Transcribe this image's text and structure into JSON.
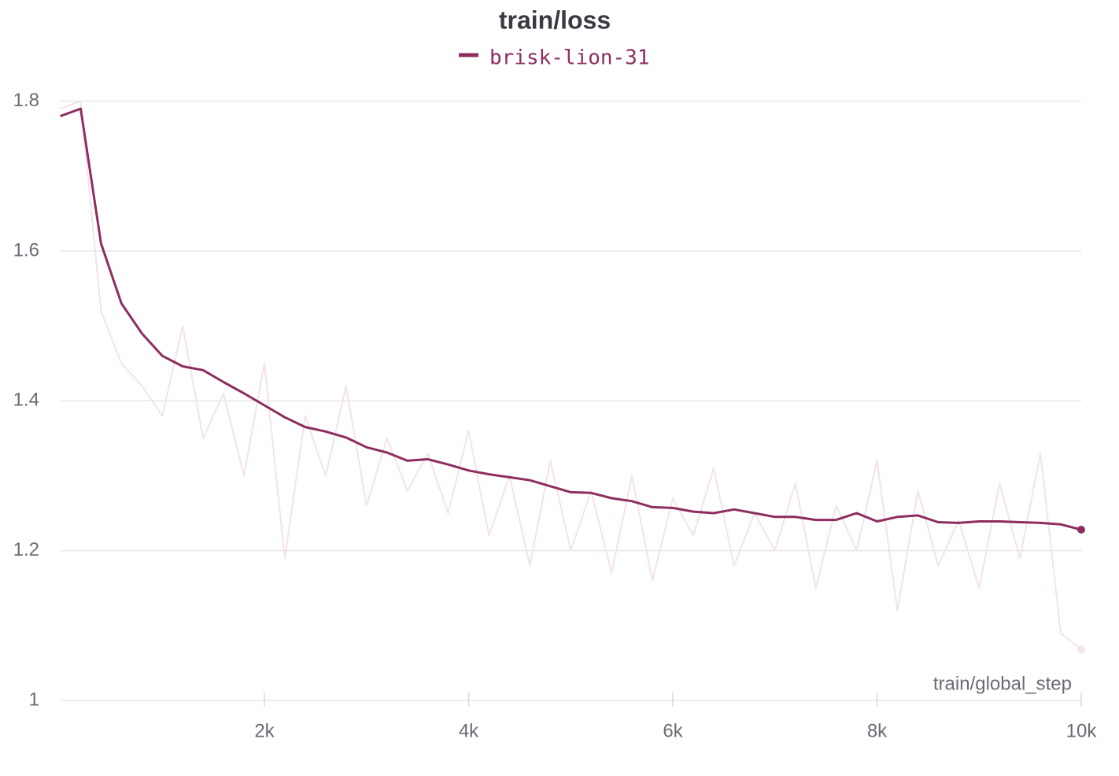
{
  "chart_data": {
    "type": "line",
    "title": "train/loss",
    "x_label": "train/global_step",
    "x": [
      0,
      200,
      400,
      600,
      800,
      1000,
      1200,
      1400,
      1600,
      1800,
      2000,
      2200,
      2400,
      2600,
      2800,
      3000,
      3200,
      3400,
      3600,
      3800,
      4000,
      4200,
      4400,
      4600,
      4800,
      5000,
      5200,
      5400,
      5600,
      5800,
      6000,
      6200,
      6400,
      6600,
      6800,
      7000,
      7200,
      7400,
      7600,
      7800,
      8000,
      8200,
      8400,
      8600,
      8800,
      9000,
      9200,
      9400,
      9600,
      9800,
      10000
    ],
    "series": [
      {
        "name": "brisk-lion-31",
        "color": "#8e2d5f",
        "values": [
          1.78,
          1.79,
          1.61,
          1.53,
          1.49,
          1.46,
          1.446,
          1.441,
          1.425,
          1.41,
          1.394,
          1.378,
          1.365,
          1.359,
          1.351,
          1.338,
          1.331,
          1.32,
          1.322,
          1.315,
          1.307,
          1.302,
          1.298,
          1.294,
          1.286,
          1.278,
          1.277,
          1.27,
          1.266,
          1.258,
          1.257,
          1.252,
          1.25,
          1.255,
          1.25,
          1.245,
          1.245,
          1.241,
          1.241,
          1.25,
          1.239,
          1.245,
          1.247,
          1.238,
          1.237,
          1.239,
          1.239,
          1.238,
          1.237,
          1.235,
          1.228
        ]
      },
      {
        "color": "#f3e3ea",
        "values": [
          1.79,
          1.8,
          1.52,
          1.45,
          1.42,
          1.38,
          1.5,
          1.35,
          1.41,
          1.3,
          1.45,
          1.19,
          1.38,
          1.3,
          1.42,
          1.26,
          1.35,
          1.28,
          1.33,
          1.25,
          1.36,
          1.22,
          1.3,
          1.18,
          1.32,
          1.2,
          1.28,
          1.17,
          1.3,
          1.16,
          1.27,
          1.22,
          1.31,
          1.18,
          1.25,
          1.2,
          1.29,
          1.15,
          1.26,
          1.2,
          1.32,
          1.12,
          1.28,
          1.18,
          1.24,
          1.15,
          1.29,
          1.19,
          1.33,
          1.09,
          1.068
        ]
      }
    ],
    "xlim": [
      0,
      10000
    ],
    "xticks": [
      {
        "value": 2000,
        "label": "2k"
      },
      {
        "value": 4000,
        "label": "4k"
      },
      {
        "value": 6000,
        "label": "6k"
      },
      {
        "value": 8000,
        "label": "8k"
      },
      {
        "value": 10000,
        "label": "10k"
      }
    ],
    "ylim": [
      1,
      1.83
    ],
    "yticks": [
      1,
      1.2,
      1.4,
      1.6,
      1.8
    ],
    "grid": true
  }
}
